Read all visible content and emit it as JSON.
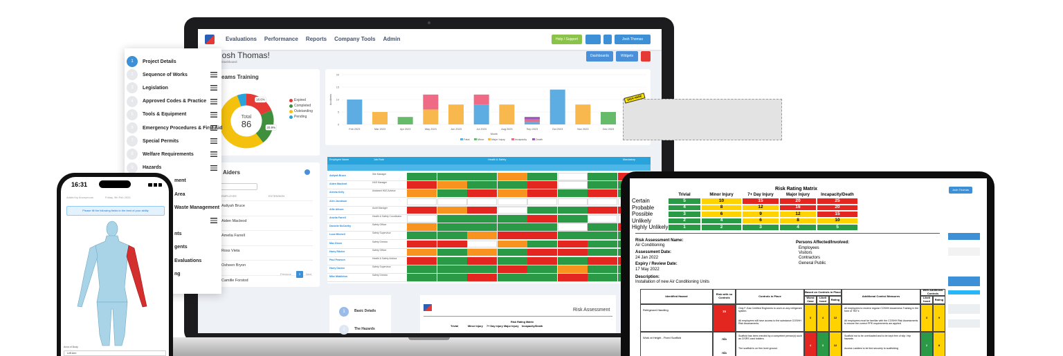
{
  "palette": {
    "g": "#2b9a47",
    "r": "#e3261f",
    "o": "#f7931e",
    "y": "#ffd200",
    "w": "#ffffff"
  },
  "laptop": {
    "nav": {
      "menu": [
        "Evaluations",
        "Performance",
        "Reports",
        "Company Tools",
        "Admin"
      ],
      "help": "Help / Support",
      "user": "Josh Thomas"
    },
    "heading": "ome Josh Thomas!",
    "subheading": "Viewing Default Dashboard",
    "buttons": [
      "Dashboards",
      "Widgets"
    ],
    "training": {
      "title": "eams Training",
      "total_label": "Total",
      "total": 86,
      "segments": [
        {
          "name": "Expired",
          "color": "#e53935",
          "value": 18.6,
          "value_label": "18.6%"
        },
        {
          "name": "Completed",
          "color": "#3f8f3c",
          "value": 20.9,
          "value_label": "20.9%"
        },
        {
          "name": "Outstanding",
          "color": "#f4c20d",
          "value": 55
        },
        {
          "name": "Pending",
          "color": "#29a3dc",
          "value": 5.5
        }
      ]
    },
    "accidents": {
      "y_label": "Accidents",
      "x_label": "Month",
      "categories": [
        "Feb 2023",
        "Mar 2023",
        "Apr 2023",
        "May 2023",
        "Jun 2023",
        "Jul 2023",
        "Aug 2023",
        "Sep 2023",
        "Oct 2023",
        "Nov 2023",
        "Dec 2023",
        "Jan 2024"
      ],
      "ylim": [
        0,
        20
      ],
      "yticks": [
        0,
        5,
        10,
        15,
        20
      ],
      "series": [
        {
          "name": "Fatal",
          "color": "#5dade2",
          "values": [
            10,
            0,
            0,
            0,
            0,
            8,
            0,
            1,
            14,
            0,
            0,
            0
          ]
        },
        {
          "name": "Minor",
          "color": "#66bb6a",
          "values": [
            0,
            0,
            3,
            0,
            0,
            0,
            0,
            0,
            0,
            0,
            5,
            0
          ]
        },
        {
          "name": "Major Injury",
          "color": "#f8b84e",
          "values": [
            0,
            5,
            0,
            6,
            8,
            0,
            8,
            0,
            0,
            8,
            0,
            0
          ]
        },
        {
          "name": "Incapacity",
          "color": "#ef6a85",
          "values": [
            0,
            0,
            0,
            6,
            0,
            4,
            0,
            1,
            0,
            0,
            0,
            10
          ]
        },
        {
          "name": "Death",
          "color": "#9b59b6",
          "values": [
            0,
            0,
            0,
            0,
            0,
            0,
            0,
            1,
            0,
            0,
            0,
            0
          ]
        }
      ]
    },
    "sign_tag": "SIGN HERE",
    "employees": {
      "headers": [
        "Employee Name",
        "Job Role"
      ],
      "groups": [
        "Health & Safety",
        "Mandatory"
      ],
      "rows": [
        {
          "name": "Aaliyah Bruce",
          "role": "Site Manager",
          "status": "gggogwgr"
        },
        {
          "name": "Aiden Macleod",
          "role": "H&S Manager",
          "status": "roggrwgg"
        },
        {
          "name": "Alesha Kelly",
          "role": "Assistant H&S Advisor",
          "status": "ogrorgrg"
        },
        {
          "name": "Alex Jacobson",
          "role": null,
          "status": "wwwwwwww"
        },
        {
          "name": "Alfie Allison",
          "role": "Audit Manager",
          "status": "rorwggrr"
        },
        {
          "name": "Amelia Farrell",
          "role": "Health & Safety Coordinator",
          "status": "wgggrgww"
        },
        {
          "name": "Danielle McCarthy",
          "role": "Safety Officer",
          "status": "oggggwgr"
        },
        {
          "name": "Luca Mitchell",
          "role": "Safety Supervisor",
          "status": "ggorrggg"
        },
        {
          "name": "Max Dixon",
          "role": "Safety Director",
          "status": "rrwogrgg"
        },
        {
          "name": "Harry Ritchie",
          "role": "Safety Officer",
          "status": "ogogrrgg"
        },
        {
          "name": "Paul Pearson",
          "role": "Health & Safety Advisor",
          "status": "rgrgrgrr"
        },
        {
          "name": "Harry Davies",
          "role": "Safety Supervisor",
          "status": "gggrgogg"
        },
        {
          "name": "Mike Middleton",
          "role": "Safety Director",
          "status": "ggrggrgg"
        }
      ]
    },
    "first_aiders": {
      "title": "Aiders",
      "columns": [
        "EMPLOYEE",
        "EXTENSION"
      ],
      "names": [
        "Aaliyah Bruce",
        "Aiden Macleod",
        "Amelia Farrell",
        "Ross Vieta",
        "Osheen Bryon",
        "Camille Forstod"
      ],
      "pagination": [
        "Previous",
        1,
        "Next"
      ]
    },
    "form_steps": [
      {
        "n": 1,
        "label": "Basic Details"
      },
      {
        "n": 2,
        "label": "The Hazards"
      }
    ],
    "doc_title": "Risk Assessment"
  },
  "steps_panel": [
    {
      "n": 1,
      "label": "Project Details"
    },
    {
      "n": 2,
      "label": "Sequence of Works"
    },
    {
      "n": 3,
      "label": "Legislation"
    },
    {
      "n": 4,
      "label": "Approved Codes & Practice"
    },
    {
      "n": 5,
      "label": "Tools & Equipment"
    },
    {
      "n": 6,
      "label": "Emergency Procedures & First Aid"
    },
    {
      "n": 7,
      "label": "Special Permits"
    },
    {
      "n": 8,
      "label": "Welfare Requirements"
    },
    {
      "n": 9,
      "label": "Hazards"
    },
    {
      "label": "ment"
    },
    {
      "label": "Area"
    },
    {
      "label": "Waste Management"
    },
    {
      "label": "nts"
    },
    {
      "label": "gents"
    },
    {
      "label": "Evaluations"
    },
    {
      "label": "ng"
    }
  ],
  "phone": {
    "time": "16:31",
    "added_by": "Added by Anonymous",
    "date": "Friday, 9th Feb 2024",
    "notice": "Please fill the following fields to the best of your ability",
    "field_label": "Area of Body",
    "field_value": "Left Arm"
  },
  "tablet": {
    "user": "Josh Thomas",
    "matrix": {
      "title": "Risk Rating Matrix",
      "columns": [
        "Trivial",
        "Minor Injury",
        "7+ Day Injury",
        "Major Injury",
        "Incapacity/Death"
      ],
      "rows": [
        {
          "label": "Certain",
          "values": [
            5,
            10,
            15,
            20,
            25
          ],
          "colors": "gyrrr"
        },
        {
          "label": "Probable",
          "values": [
            4,
            8,
            12,
            16,
            20
          ],
          "colors": "gyyrr"
        },
        {
          "label": "Possible",
          "values": [
            3,
            6,
            9,
            12,
            15
          ],
          "colors": "gyyyr"
        },
        {
          "label": "Unlikely",
          "values": [
            2,
            4,
            6,
            8,
            10
          ],
          "colors": "ggyyy"
        },
        {
          "label": "Highly Unlikely",
          "values": [
            1,
            2,
            3,
            4,
            5
          ],
          "colors": "ggggg"
        }
      ]
    },
    "details": {
      "name_label": "Risk Assessment Name:",
      "name": "Air Conditioning",
      "date_label": "Assessment Date:",
      "date": "24 Jan 2022",
      "expiry_label": "Expiry / Review Date:",
      "expiry": "17 May 2022",
      "persons_label": "Persons Affected/Involved:",
      "persons": [
        "Employees",
        "Visitors",
        "Contractors",
        "General Public"
      ],
      "description_label": "Description:",
      "description": "Installation of new Air Conditioning Units"
    },
    "table": {
      "headers": {
        "hazard": "Identified Hazard",
        "risk": "Risk with no Controls",
        "controls": "Controls in Place",
        "based": "Based on Controls in Place",
        "worst": "Worst Case",
        "likelihood": "Likeli hood",
        "rating": "Rating",
        "additional": "Additional Control Measures",
        "with": "With Additional Controls",
        "likelihood2": "Likeli hood",
        "rating2": "Rating"
      },
      "rows": [
        {
          "hazard": "Refrigerant Handling",
          "risk": [
            15
          ],
          "controls": [
            "Only F-Gas Certified Engineers to work on any refrigerant system.",
            "All employees will have access to the substance COSHH Risk Assessments."
          ],
          "based": [
            3,
            4,
            12
          ],
          "additional": [
            "All employees to receive regular COSHH Awareness Training in the form of TBT's",
            "All employees must be familiar with the COSHH Risk Assessments to ensure the correct PPE requirements are applied"
          ],
          "with": [
            3,
            9
          ],
          "colors": "ryyyyy"
        },
        {
          "hazard": "Work at Height - Fixed Scaffold",
          "risk": [
            "n/a",
            "n/a"
          ],
          "controls": [
            "Scaffold has been erected by a competent person(s) such as CISRS card holders.",
            "The scaffold is on firm level ground."
          ],
          "based": [
            4,
            3,
            12
          ],
          "additional": [
            "Scaffold not to be overloaded and to be kept free of slip / trip hazards",
            "Access Ladders to be tied securely to scaffolding"
          ],
          "with": [
            2,
            8
          ],
          "colors": "wrgygy"
        }
      ]
    }
  }
}
